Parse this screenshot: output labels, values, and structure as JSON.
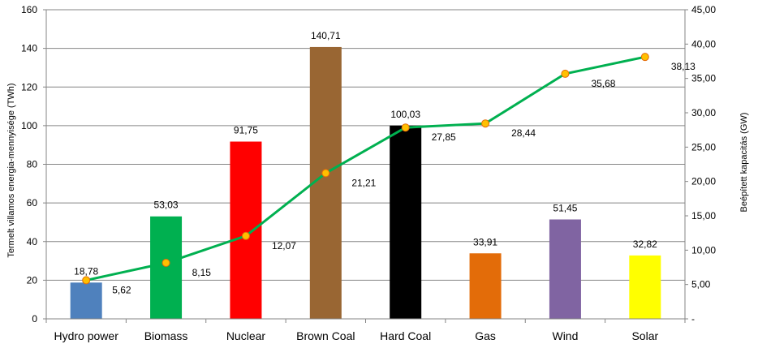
{
  "chart_data": {
    "type": "bar",
    "categories": [
      "Hydro power",
      "Biomass",
      "Nuclear",
      "Brown Coal",
      "Hard Coal",
      "Gas",
      "Wind",
      "Solar"
    ],
    "series": [
      {
        "kind": "bar",
        "axis": "left",
        "values": [
          18.78,
          53.03,
          91.75,
          140.71,
          100.03,
          33.91,
          51.45,
          32.82
        ],
        "labels": [
          "18,78",
          "53,03",
          "91,75",
          "140,71",
          "100,03",
          "33,91",
          "51,45",
          "32,82"
        ],
        "colors": [
          "#4f81bd",
          "#00b050",
          "#ff0000",
          "#996633",
          "#000000",
          "#e36c09",
          "#8064a2",
          "#ffff00"
        ]
      },
      {
        "kind": "line",
        "axis": "right",
        "values": [
          5.62,
          8.15,
          12.07,
          21.21,
          27.85,
          28.44,
          35.68,
          38.13
        ],
        "labels": [
          "5,62",
          "8,15",
          "12,07",
          "21,21",
          "27,85",
          "28,44",
          "35,68",
          "38,13"
        ],
        "color": "#00b050",
        "marker_color": "#ffc000",
        "marker_edge": "#e36c09"
      }
    ],
    "ylabel": "Termelt villamos energia-mennyisége (TWh)",
    "y2label": "Beépített  kapacitás (GW)",
    "ylim": [
      0,
      160
    ],
    "y2lim": [
      0,
      45
    ],
    "yticks": [
      0,
      20,
      40,
      60,
      80,
      100,
      120,
      140,
      160
    ],
    "y2ticks": [
      "-",
      "5,00",
      "10,00",
      "15,00",
      "20,00",
      "25,00",
      "30,00",
      "35,00",
      "40,00",
      "45,00"
    ],
    "grid": true,
    "legend": "none"
  }
}
